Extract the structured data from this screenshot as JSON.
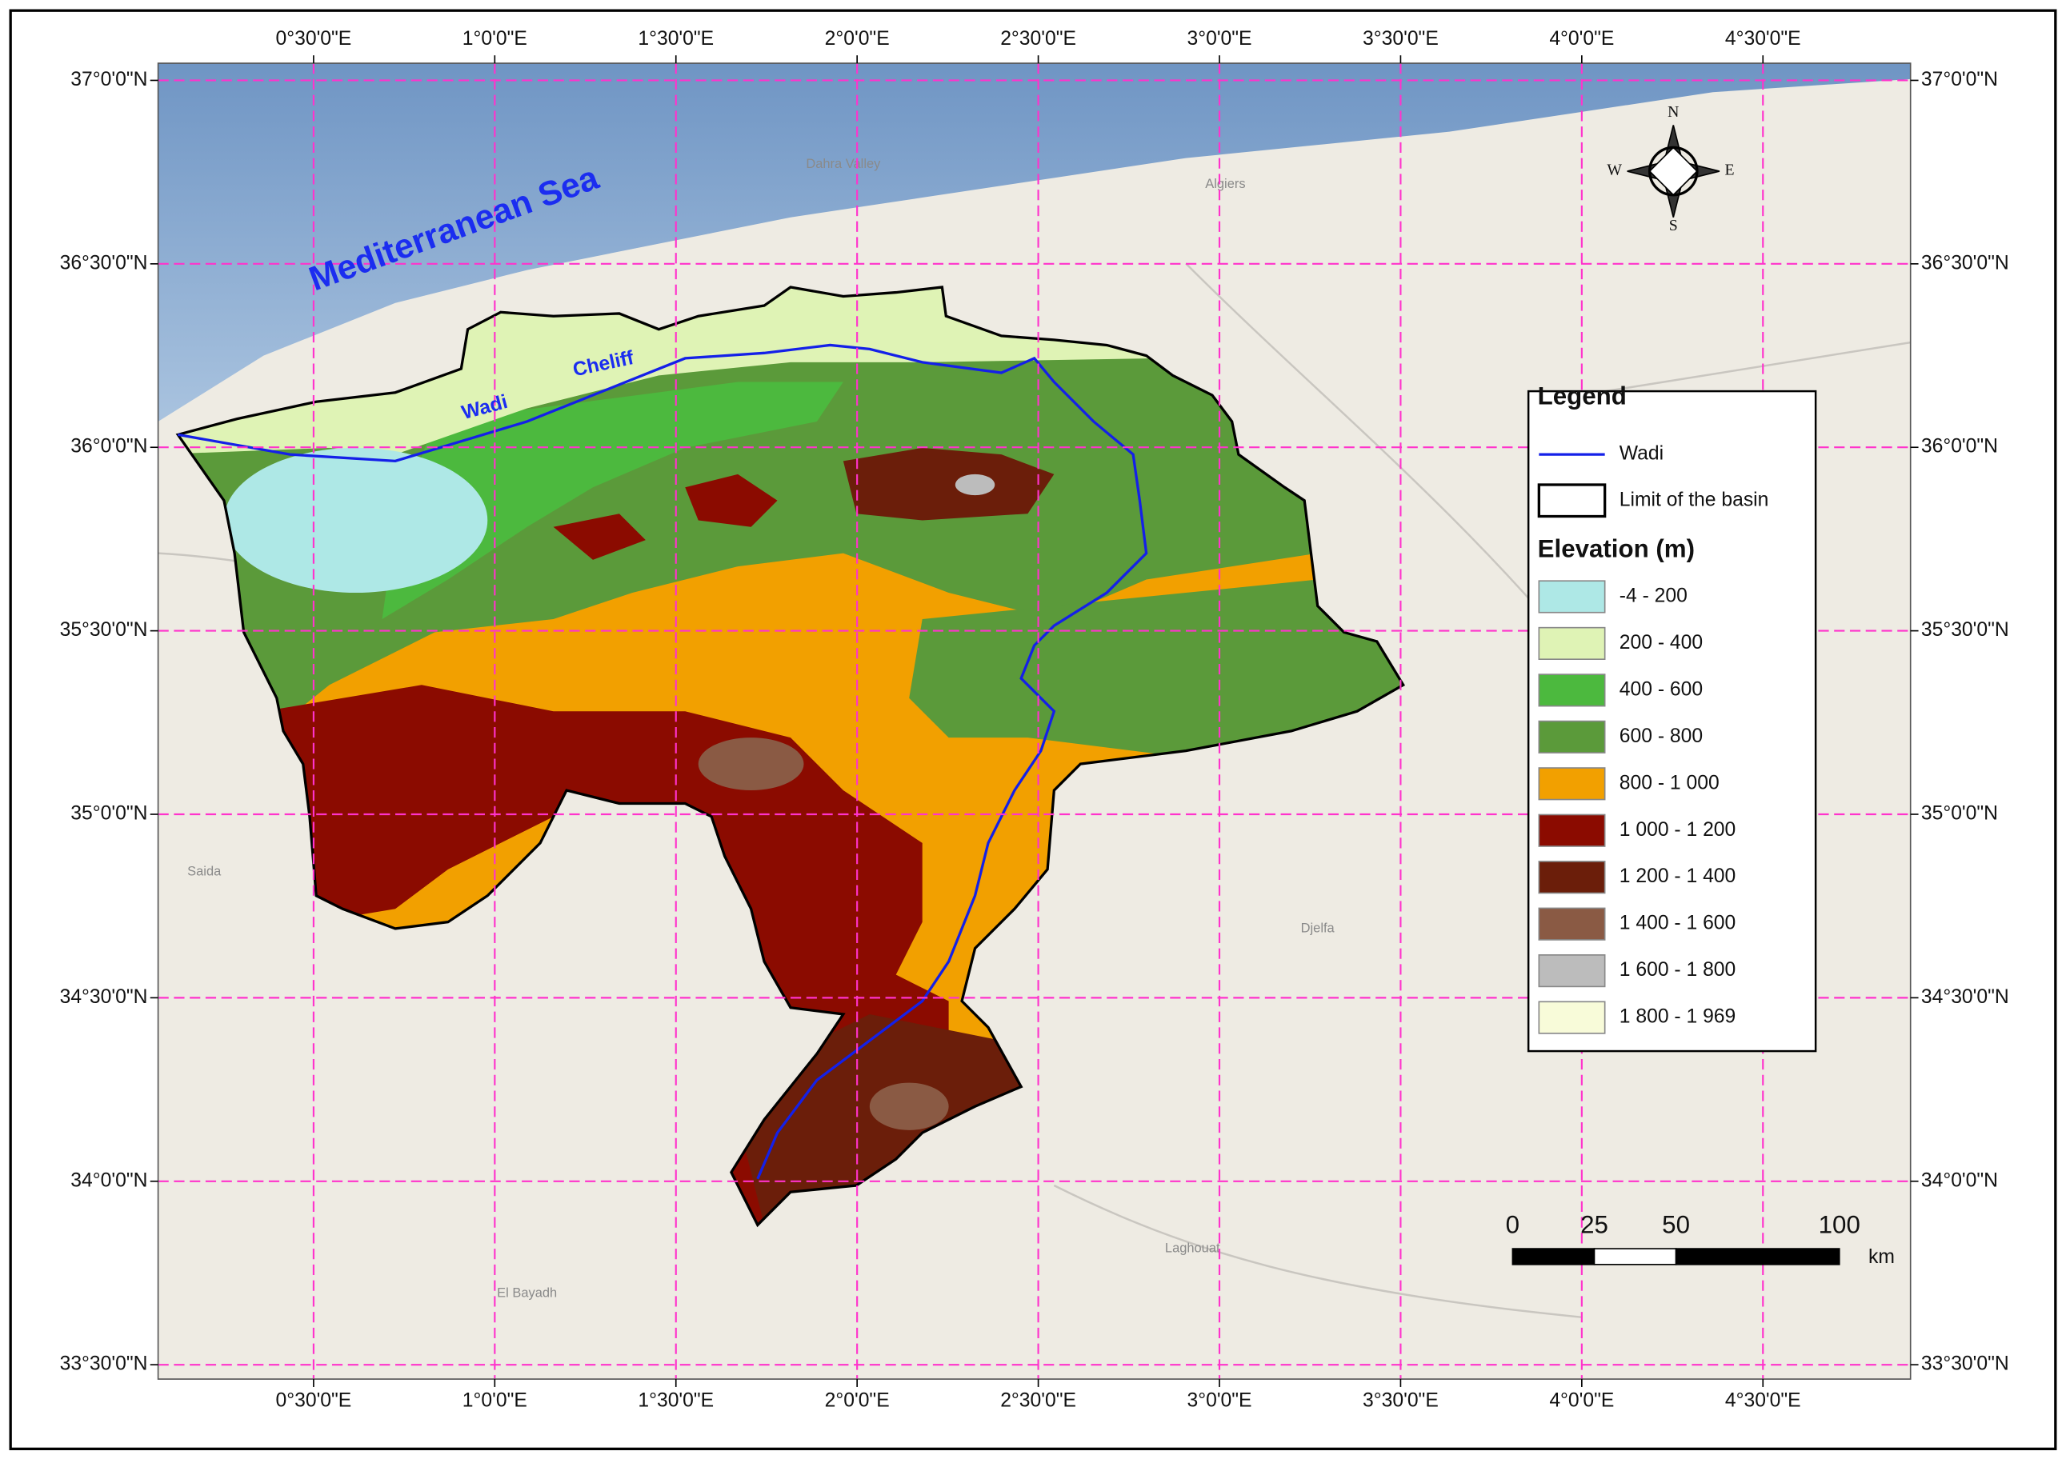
{
  "map": {
    "sea_label": "Mediterranean  Sea",
    "river_labels": [
      "Wadi",
      "Cheliff"
    ],
    "place_labels": [
      "Algiers",
      "Dahra Valley",
      "Djelfa",
      "Laghouat",
      "El Bayadh",
      "Saida"
    ],
    "compass": [
      "N",
      "E",
      "S",
      "W"
    ]
  },
  "graticule": {
    "longitudes": [
      {
        "value": 0.5,
        "label": "0°30'0\"E"
      },
      {
        "value": 1,
        "label": "1°0'0\"E"
      },
      {
        "value": 1.5,
        "label": "1°30'0\"E"
      },
      {
        "value": 2,
        "label": "2°0'0\"E"
      },
      {
        "value": 2.5,
        "label": "2°30'0\"E"
      },
      {
        "value": 3,
        "label": "3°0'0\"E"
      },
      {
        "value": 3.5,
        "label": "3°30'0\"E"
      },
      {
        "value": 4,
        "label": "4°0'0\"E"
      },
      {
        "value": 4.5,
        "label": "4°30'0\"E"
      }
    ],
    "latitudes": [
      {
        "value": 37,
        "label": "37°0'0\"N"
      },
      {
        "value": 36.5,
        "label": "36°30'0\"N"
      },
      {
        "value": 36,
        "label": "36°0'0\"N"
      },
      {
        "value": 35.5,
        "label": "35°30'0\"N"
      },
      {
        "value": 35,
        "label": "35°0'0\"N"
      },
      {
        "value": 34.5,
        "label": "34°30'0\"N"
      },
      {
        "value": 34,
        "label": "34°0'0\"N"
      },
      {
        "value": 33.5,
        "label": "33°30'0\"N"
      }
    ]
  },
  "legend": {
    "title": "Legend",
    "items": [
      "Wadi",
      "Limit of the basin"
    ],
    "elevation_title": "Elevation (m)",
    "classes": [
      {
        "label": "-4 - 200",
        "color": "#aee8e6"
      },
      {
        "label": "200 - 400",
        "color": "#dff3b5"
      },
      {
        "label": "400 - 600",
        "color": "#4cb93e"
      },
      {
        "label": "600 - 800",
        "color": "#5b9a3a"
      },
      {
        "label": "800 - 1 000",
        "color": "#f2a000"
      },
      {
        "label": "1 000 - 1 200",
        "color": "#8b0b00"
      },
      {
        "label": "1 200 - 1 400",
        "color": "#6b1e0a"
      },
      {
        "label": "1 400 - 1 600",
        "color": "#8a5a44"
      },
      {
        "label": "1 600 - 1 800",
        "color": "#bcbcbc"
      },
      {
        "label": "1 800 - 1 969",
        "color": "#f8fbd9"
      }
    ]
  },
  "scale_bar": {
    "ticks": [
      0,
      25,
      50,
      100
    ],
    "unit": "km"
  }
}
